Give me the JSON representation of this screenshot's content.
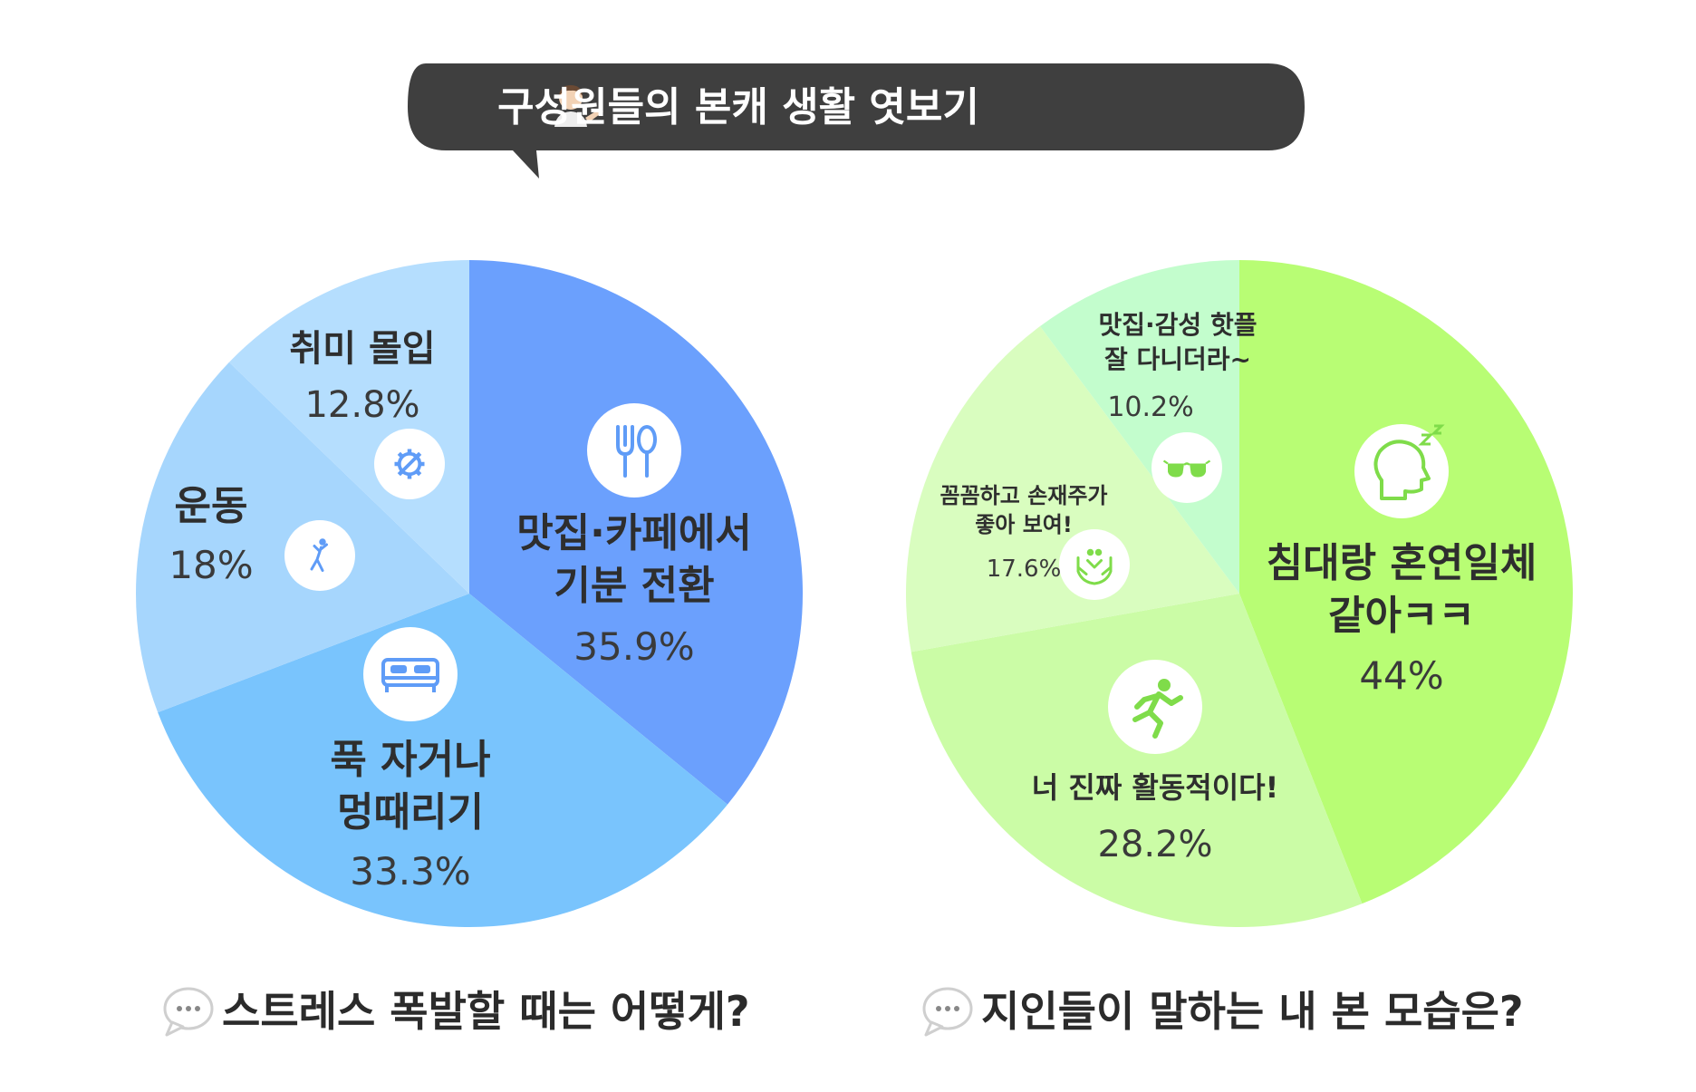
{
  "banner": {
    "title": "구성원들의 본캐 생활 엿보기",
    "icon": "person-tipping-hand-icon",
    "bg_color": "#3f3f3f"
  },
  "chart_data": [
    {
      "type": "pie",
      "title": "스트레스 폭발할 때는 어떻게?",
      "slices": [
        {
          "label_lines": [
            "맛집·카페에서",
            "기분 전환"
          ],
          "value": 35.9,
          "value_text": "35.9%",
          "color": "#6ba0fd",
          "icon": "fork-spoon-icon"
        },
        {
          "label_lines": [
            "푹 자거나",
            "멍때리기"
          ],
          "value": 33.3,
          "value_text": "33.3%",
          "color": "#79c4fd",
          "icon": "bed-icon"
        },
        {
          "label_lines": [
            "운동"
          ],
          "value": 18,
          "value_text": "18%",
          "color": "#a6d6fd",
          "icon": "exercise-person-icon"
        },
        {
          "label_lines": [
            "취미 몰입"
          ],
          "value": 12.8,
          "value_text": "12.8%",
          "color": "#b5defe",
          "icon": "gear-wrench-icon"
        }
      ]
    },
    {
      "type": "pie",
      "title": "지인들이 말하는 내 본 모습은?",
      "slices": [
        {
          "label_lines": [
            "침대랑 혼연일체",
            "같아ㅋㅋ"
          ],
          "value": 44,
          "value_text": "44%",
          "color": "#b8fd74",
          "icon": "sleeping-head-icon"
        },
        {
          "label_lines": [
            "너 진짜 활동적이다!"
          ],
          "value": 28.2,
          "value_text": "28.2%",
          "color": "#cbfca6",
          "icon": "running-person-icon"
        },
        {
          "label_lines": [
            "꼼꼼하고 손재주가",
            "좋아 보여!"
          ],
          "value": 17.6,
          "value_text": "17.6%",
          "color": "#d9fdbf",
          "icon": "helping-hands-icon"
        },
        {
          "label_lines": [
            "맛집·감성 핫플",
            "잘 다니더라~"
          ],
          "value": 10.2,
          "value_text": "10.2%",
          "color": "#c3fdcd",
          "icon": "sunglasses-icon"
        }
      ]
    }
  ],
  "captions": {
    "icon": "speech-bubble-icon"
  }
}
